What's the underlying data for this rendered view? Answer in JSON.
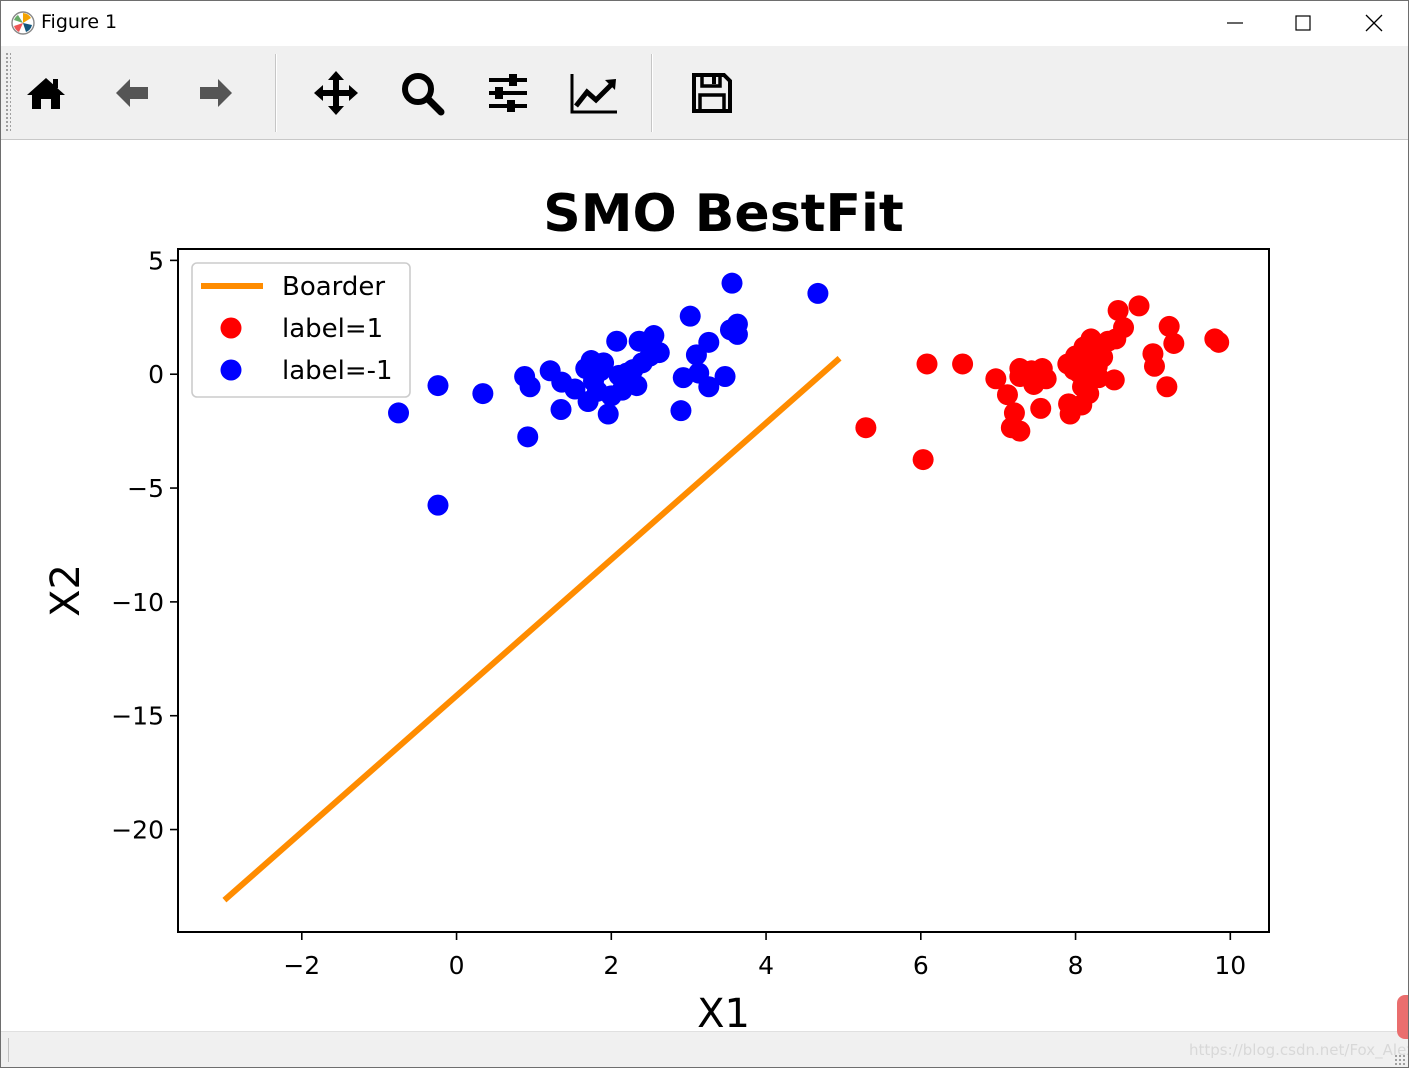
{
  "window": {
    "title": "Figure 1"
  },
  "toolbar": {
    "buttons": [
      {
        "name": "home",
        "icon": "home-icon"
      },
      {
        "name": "back",
        "icon": "arrow-left-icon"
      },
      {
        "name": "forward",
        "icon": "arrow-right-icon"
      },
      {
        "name": "pan",
        "icon": "move-icon"
      },
      {
        "name": "zoom",
        "icon": "magnifier-icon"
      },
      {
        "name": "configure-subplots",
        "icon": "sliders-icon"
      },
      {
        "name": "edit-axis",
        "icon": "line-chart-icon"
      },
      {
        "name": "save",
        "icon": "floppy-disk-icon"
      }
    ]
  },
  "watermark": "https://blog.csdn.net/Fox_Alex",
  "colors": {
    "boarder": "#ff8c00",
    "label_pos": "#ff0000",
    "label_neg": "#0000ff"
  },
  "chart_data": {
    "type": "scatter",
    "title": "SMO BestFit",
    "xlabel": "X1",
    "ylabel": "X2",
    "xlim": [
      -3.6,
      10.5
    ],
    "ylim": [
      -24.5,
      5.5
    ],
    "xticks": [
      -2,
      0,
      2,
      4,
      6,
      8,
      10
    ],
    "xtick_labels": [
      "−2",
      "0",
      "2",
      "4",
      "6",
      "8",
      "10"
    ],
    "yticks": [
      5,
      0,
      -5,
      -10,
      -15,
      -20
    ],
    "ytick_labels": [
      "5",
      "0",
      "−5",
      "−10",
      "−15",
      "−20"
    ],
    "grid": false,
    "legend": {
      "placement": "upper-left",
      "entries": [
        {
          "label": "Boarder",
          "kind": "line",
          "color": "#ff8c00"
        },
        {
          "label": "label=1",
          "kind": "marker",
          "color": "#ff0000"
        },
        {
          "label": "label=-1",
          "kind": "marker",
          "color": "#0000ff"
        }
      ]
    },
    "series": [
      {
        "name": "Boarder",
        "kind": "line",
        "color": "#ff8c00",
        "x": [
          -3.0,
          4.95
        ],
        "y": [
          -23.1,
          0.7
        ]
      },
      {
        "name": "label=1",
        "kind": "scatter",
        "color": "#ff0000",
        "points": [
          [
            5.29,
            -2.35
          ],
          [
            6.03,
            -3.75
          ],
          [
            6.08,
            0.45
          ],
          [
            6.54,
            0.45
          ],
          [
            6.97,
            -0.2
          ],
          [
            7.12,
            -0.9
          ],
          [
            7.17,
            -2.35
          ],
          [
            7.21,
            -1.7
          ],
          [
            7.28,
            0.25
          ],
          [
            7.28,
            -2.5
          ],
          [
            7.28,
            -0.1
          ],
          [
            7.43,
            0.15
          ],
          [
            7.46,
            -0.45
          ],
          [
            7.55,
            -1.5
          ],
          [
            7.57,
            0.25
          ],
          [
            7.62,
            -0.2
          ],
          [
            7.9,
            0.45
          ],
          [
            7.91,
            -1.3
          ],
          [
            7.93,
            -1.75
          ],
          [
            7.98,
            0.2
          ],
          [
            8.0,
            0.8
          ],
          [
            8.05,
            0.05
          ],
          [
            8.08,
            -1.35
          ],
          [
            8.09,
            -0.55
          ],
          [
            8.11,
            1.2
          ],
          [
            8.16,
            0.55
          ],
          [
            8.17,
            -0.85
          ],
          [
            8.2,
            1.55
          ],
          [
            8.24,
            0.95
          ],
          [
            8.28,
            0.35
          ],
          [
            8.3,
            -0.15
          ],
          [
            8.35,
            0.75
          ],
          [
            8.42,
            1.45
          ],
          [
            8.5,
            -0.25
          ],
          [
            8.52,
            1.55
          ],
          [
            8.55,
            2.8
          ],
          [
            8.62,
            2.05
          ],
          [
            8.82,
            3.0
          ],
          [
            9.0,
            0.9
          ],
          [
            9.02,
            0.35
          ],
          [
            9.18,
            -0.55
          ],
          [
            9.21,
            2.1
          ],
          [
            9.27,
            1.35
          ],
          [
            9.8,
            1.55
          ],
          [
            9.85,
            1.4
          ]
        ]
      },
      {
        "name": "label=-1",
        "kind": "scatter",
        "color": "#0000ff",
        "points": [
          [
            -0.75,
            -1.7
          ],
          [
            -0.24,
            -0.5
          ],
          [
            -0.24,
            -5.75
          ],
          [
            0.34,
            -0.85
          ],
          [
            0.88,
            -0.1
          ],
          [
            0.92,
            -2.75
          ],
          [
            0.95,
            -0.55
          ],
          [
            1.21,
            0.15
          ],
          [
            1.35,
            -1.55
          ],
          [
            1.36,
            -0.35
          ],
          [
            1.53,
            -0.65
          ],
          [
            1.67,
            0.25
          ],
          [
            1.7,
            -1.2
          ],
          [
            1.74,
            0.6
          ],
          [
            1.77,
            -0.3
          ],
          [
            1.82,
            -0.75
          ],
          [
            1.86,
            0.15
          ],
          [
            1.9,
            0.5
          ],
          [
            1.96,
            -1.75
          ],
          [
            2.0,
            -0.95
          ],
          [
            2.07,
            1.45
          ],
          [
            2.1,
            -0.05
          ],
          [
            2.14,
            -0.7
          ],
          [
            2.2,
            0.05
          ],
          [
            2.28,
            0.2
          ],
          [
            2.33,
            -0.5
          ],
          [
            2.36,
            1.45
          ],
          [
            2.4,
            0.5
          ],
          [
            2.47,
            1.35
          ],
          [
            2.5,
            0.8
          ],
          [
            2.55,
            1.7
          ],
          [
            2.62,
            0.95
          ],
          [
            2.9,
            -1.6
          ],
          [
            2.93,
            -0.15
          ],
          [
            3.02,
            2.55
          ],
          [
            3.1,
            0.85
          ],
          [
            3.13,
            0.05
          ],
          [
            3.26,
            1.4
          ],
          [
            3.26,
            -0.55
          ],
          [
            3.47,
            -0.1
          ],
          [
            3.54,
            1.95
          ],
          [
            3.56,
            4.0
          ],
          [
            3.63,
            2.2
          ],
          [
            3.63,
            1.75
          ],
          [
            4.67,
            3.55
          ]
        ]
      }
    ]
  }
}
